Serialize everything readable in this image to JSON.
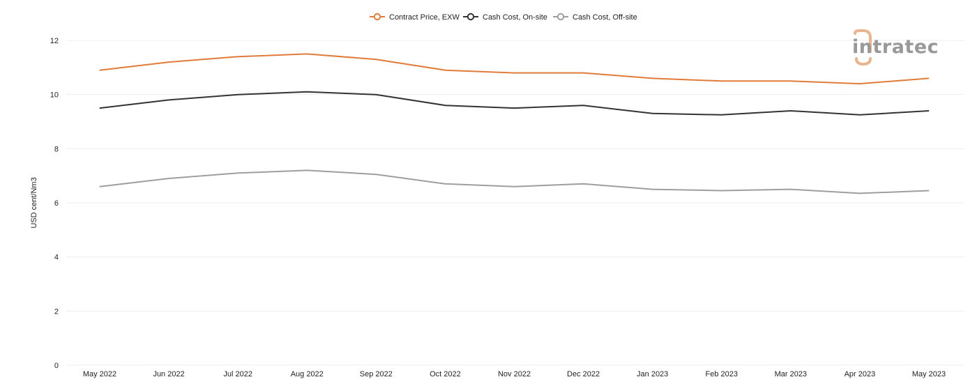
{
  "chart_data": {
    "type": "line",
    "title": "",
    "xlabel": "",
    "ylabel": "USD cent/Nm3",
    "ylim": [
      0,
      12
    ],
    "yticks": [
      0,
      2,
      4,
      6,
      8,
      10,
      12
    ],
    "grid": true,
    "legend_position": "top-center",
    "categories": [
      "May 2022",
      "Jun 2022",
      "Jul 2022",
      "Aug 2022",
      "Sep 2022",
      "Oct 2022",
      "Nov 2022",
      "Dec 2022",
      "Jan 2023",
      "Feb 2023",
      "Mar 2023",
      "Apr 2023",
      "May 2023"
    ],
    "series": [
      {
        "name": "Contract Price, EXW",
        "color": "#e07b39",
        "values": [
          10.9,
          11.2,
          11.4,
          11.5,
          11.3,
          10.9,
          10.8,
          10.8,
          10.6,
          10.5,
          10.5,
          10.4,
          10.6
        ]
      },
      {
        "name": "Cash Cost, On-site",
        "color": "#333333",
        "values": [
          9.5,
          9.8,
          10.0,
          10.1,
          10.0,
          9.6,
          9.5,
          9.6,
          9.3,
          9.25,
          9.4,
          9.25,
          9.4
        ]
      },
      {
        "name": "Cash Cost, Off-site",
        "color": "#9e9e9e",
        "values": [
          6.6,
          6.9,
          7.1,
          7.2,
          7.05,
          6.7,
          6.6,
          6.7,
          6.5,
          6.45,
          6.5,
          6.35,
          6.45
        ]
      }
    ]
  },
  "logo": {
    "text": "intratec",
    "accent_color": "#e8b58f",
    "color": "#999999"
  }
}
